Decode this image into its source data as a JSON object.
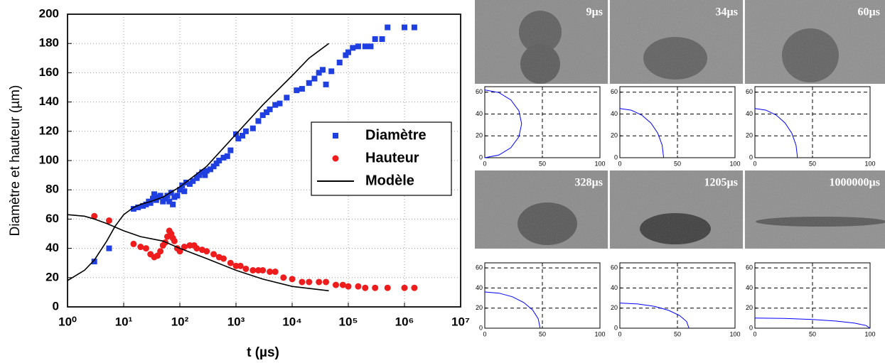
{
  "chart_data": [
    {
      "type": "scatter",
      "xlabel": "t (µs)",
      "ylabel": "Diamètre et hauteur (µm)",
      "xscale": "log",
      "grid": true,
      "legend": "center right",
      "xlim": [
        1,
        10000000
      ],
      "ylim": [
        0,
        200
      ],
      "xticks": [
        {
          "value": 1,
          "label": "10⁰"
        },
        {
          "value": 10,
          "label": "10¹"
        },
        {
          "value": 100,
          "label": "10²"
        },
        {
          "value": 1000,
          "label": "10³"
        },
        {
          "value": 10000,
          "label": "10⁴"
        },
        {
          "value": 100000,
          "label": "10⁵"
        },
        {
          "value": 1000000,
          "label": "10⁶"
        },
        {
          "value": 10000000,
          "label": "10⁷"
        }
      ],
      "yticks": [
        0,
        20,
        40,
        60,
        80,
        100,
        120,
        140,
        160,
        180,
        200
      ],
      "series": [
        {
          "name": "Diamètre",
          "color": "#1f3fe0",
          "marker": "square",
          "x": [
            3,
            5.5,
            15,
            18,
            22,
            25,
            28,
            30,
            33,
            35,
            38,
            40,
            45,
            50,
            55,
            60,
            65,
            70,
            75,
            80,
            90,
            100,
            110,
            120,
            130,
            150,
            170,
            200,
            220,
            250,
            280,
            300,
            350,
            400,
            450,
            500,
            600,
            700,
            800,
            1000,
            1100,
            1300,
            1500,
            2000,
            2500,
            3000,
            3500,
            4000,
            5000,
            6000,
            8000,
            12000,
            15000,
            20000,
            25000,
            30000,
            35000,
            40000,
            50000,
            70000,
            90000,
            100000,
            120000,
            150000,
            200000,
            250000,
            300000,
            400000,
            500000,
            1000000,
            1500000
          ],
          "values": [
            31,
            40,
            67,
            68,
            69,
            70,
            72,
            71,
            74,
            77,
            73,
            75,
            76,
            72,
            74,
            76,
            72,
            78,
            70,
            75,
            76,
            80,
            83,
            79,
            85,
            84,
            86,
            88,
            90,
            92,
            90,
            93,
            94,
            96,
            98,
            100,
            102,
            103,
            107,
            118,
            115,
            117,
            120,
            122,
            127,
            131,
            133,
            135,
            138,
            139,
            143,
            148,
            149,
            153,
            156,
            160,
            162,
            152,
            161,
            167,
            172,
            174,
            177,
            178,
            178,
            178,
            183,
            183,
            191,
            191,
            191
          ]
        },
        {
          "name": "Hauteur",
          "color": "#ee1c1c",
          "marker": "circle",
          "x": [
            3,
            5.5,
            15,
            20,
            25,
            30,
            35,
            40,
            45,
            50,
            55,
            60,
            65,
            70,
            75,
            80,
            90,
            100,
            120,
            150,
            180,
            200,
            250,
            300,
            400,
            500,
            600,
            800,
            1000,
            1200,
            1500,
            2000,
            2500,
            3000,
            4000,
            5000,
            7000,
            10000,
            15000,
            20000,
            30000,
            40000,
            60000,
            80000,
            100000,
            150000,
            200000,
            300000,
            500000,
            1000000,
            1500000
          ],
          "values": [
            62,
            59,
            43,
            41,
            40,
            36,
            34,
            35,
            38,
            42,
            44,
            48,
            52,
            50,
            47,
            45,
            40,
            38,
            41,
            42,
            42,
            40,
            39,
            38,
            36,
            34,
            33,
            30,
            28,
            28,
            26,
            25,
            25,
            25,
            24,
            24,
            20,
            19,
            17,
            17,
            17,
            17,
            15,
            15,
            14,
            14,
            13,
            13,
            13,
            13,
            13
          ]
        },
        {
          "name": "Modèle",
          "color": "#000000",
          "line": true,
          "x": [
            1,
            2,
            3,
            5,
            7,
            10,
            15,
            20,
            30,
            50,
            100,
            300,
            1000,
            3000,
            10000,
            20000,
            45000,
            null,
            1,
            2,
            3,
            5,
            10,
            20,
            50,
            100,
            300,
            1000,
            3000,
            10000,
            45000
          ],
          "values": [
            18,
            25,
            32,
            45,
            55,
            63,
            68,
            70,
            72,
            75,
            82,
            96,
            118,
            138,
            158,
            170,
            180,
            null,
            63,
            62,
            60,
            57,
            52,
            48,
            45,
            40,
            33,
            25,
            19,
            14,
            11
          ]
        }
      ]
    },
    {
      "type": "line",
      "annotation": "9µs",
      "xlim": [
        0,
        100
      ],
      "ylim": [
        0,
        65
      ],
      "xticks": [
        0,
        50,
        100
      ],
      "yticks": [
        0,
        20,
        40,
        60
      ],
      "grid": true,
      "series": [
        {
          "color": "#0000ff",
          "x": [
            0,
            12.2,
            22.6,
            29.6,
            32,
            29.6,
            22.6,
            12.2,
            0
          ],
          "values": [
            62,
            59.6,
            52.9,
            42.9,
            31,
            19.1,
            9.1,
            2.4,
            0
          ]
        }
      ]
    },
    {
      "type": "line",
      "annotation": "34µs",
      "xlim": [
        0,
        100
      ],
      "ylim": [
        0,
        65
      ],
      "xticks": [
        0,
        50,
        100
      ],
      "yticks": [
        0,
        20,
        40,
        60
      ],
      "grid": true,
      "series": [
        {
          "color": "#0000ff",
          "x": [
            0,
            9.8,
            19,
            26.9,
            32.9,
            36.7,
            38
          ],
          "values": [
            45,
            43.5,
            39,
            31.8,
            22.5,
            11.6,
            0
          ]
        }
      ]
    },
    {
      "type": "line",
      "annotation": "60µs",
      "xlim": [
        0,
        100
      ],
      "ylim": [
        0,
        65
      ],
      "xticks": [
        0,
        50,
        100
      ],
      "yticks": [
        0,
        20,
        40,
        60
      ],
      "grid": true,
      "series": [
        {
          "color": "#0000ff",
          "x": [
            0,
            9.6,
            18.5,
            26.2,
            32,
            35.7,
            37
          ],
          "values": [
            45,
            43.5,
            39,
            31.8,
            22.5,
            11.6,
            0
          ]
        }
      ]
    },
    {
      "type": "line",
      "annotation": "328µs",
      "xlim": [
        0,
        100
      ],
      "ylim": [
        0,
        65
      ],
      "xticks": [
        0,
        50,
        100
      ],
      "yticks": [
        0,
        20,
        40,
        60
      ],
      "grid": true,
      "series": [
        {
          "color": "#0000ff",
          "x": [
            0,
            12.4,
            24,
            33.9,
            41.6,
            46.4,
            48
          ],
          "values": [
            36,
            34.8,
            31.2,
            25.5,
            18,
            9.3,
            0
          ]
        }
      ]
    },
    {
      "type": "line",
      "annotation": "1205µs",
      "xlim": [
        0,
        100
      ],
      "ylim": [
        0,
        65
      ],
      "xticks": [
        0,
        50,
        100
      ],
      "yticks": [
        0,
        20,
        40,
        60
      ],
      "grid": true,
      "series": [
        {
          "color": "#0000ff",
          "x": [
            0,
            15.5,
            30,
            42.4,
            52,
            58,
            60
          ],
          "values": [
            25,
            24.1,
            21.7,
            17.7,
            12.5,
            6.5,
            0
          ]
        }
      ]
    },
    {
      "type": "line",
      "annotation": "1000000µs",
      "xlim": [
        0,
        100
      ],
      "ylim": [
        0,
        65
      ],
      "xticks": [
        0,
        50,
        100
      ],
      "yticks": [
        0,
        20,
        40,
        60
      ],
      "grid": true,
      "series": [
        {
          "color": "#0000ff",
          "x": [
            0,
            25.9,
            50,
            70.7,
            86.6,
            96.6,
            100
          ],
          "values": [
            10,
            9.7,
            8.7,
            7.1,
            5,
            2.6,
            0
          ]
        }
      ]
    }
  ]
}
